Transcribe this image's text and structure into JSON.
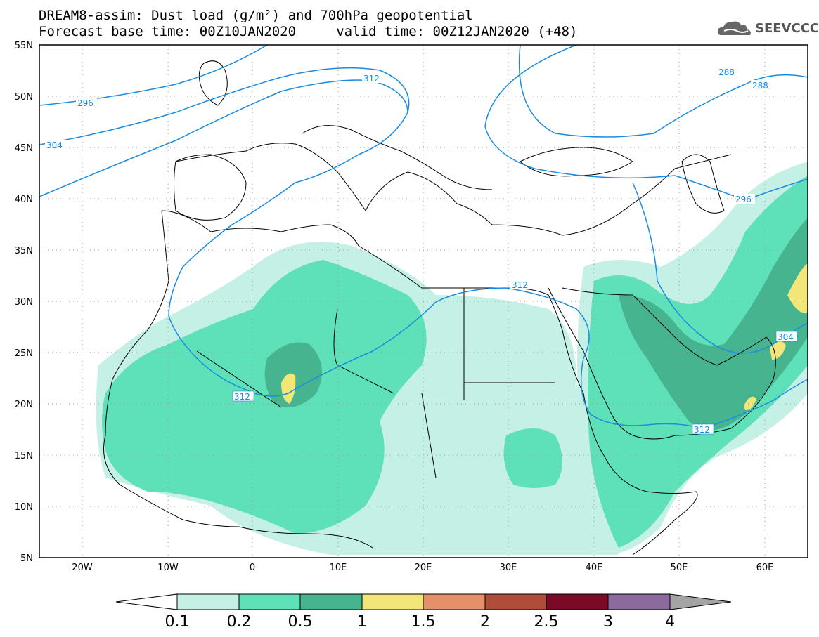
{
  "header": {
    "title_line1": "DREAM8-assim: Dust load (g/m²) and 700hPa geopotential",
    "title_line2": "Forecast base time: 00Z10JAN2020     valid time: 00Z12JAN2020 (+48)",
    "logo_text": "SEEVCCC"
  },
  "map": {
    "lon_range": [
      -25,
      65
    ],
    "lat_range": [
      5,
      55
    ],
    "lat_ticks": [
      "55N",
      "50N",
      "45N",
      "40N",
      "35N",
      "30N",
      "25N",
      "20N",
      "15N",
      "10N",
      "5N"
    ],
    "lon_ticks": [
      "20W",
      "10W",
      "0",
      "10E",
      "20E",
      "30E",
      "40E",
      "50E",
      "60E"
    ],
    "grid": "dotted",
    "isoline_color": "#1a8ce0",
    "isoline_labels": [
      "296",
      "304",
      "312",
      "312",
      "312",
      "312",
      "288",
      "288",
      "296",
      "304"
    ]
  },
  "colorbar": {
    "levels": [
      "0.1",
      "0.2",
      "0.5",
      "1",
      "1.5",
      "2",
      "2.5",
      "3",
      "4"
    ],
    "colors": [
      "#c4f0e6",
      "#5ee0b8",
      "#46b48f",
      "#f2e678",
      "#e6906a",
      "#b04c3a",
      "#7a0a26",
      "#8c6a9e",
      "#a4a4a4"
    ]
  }
}
